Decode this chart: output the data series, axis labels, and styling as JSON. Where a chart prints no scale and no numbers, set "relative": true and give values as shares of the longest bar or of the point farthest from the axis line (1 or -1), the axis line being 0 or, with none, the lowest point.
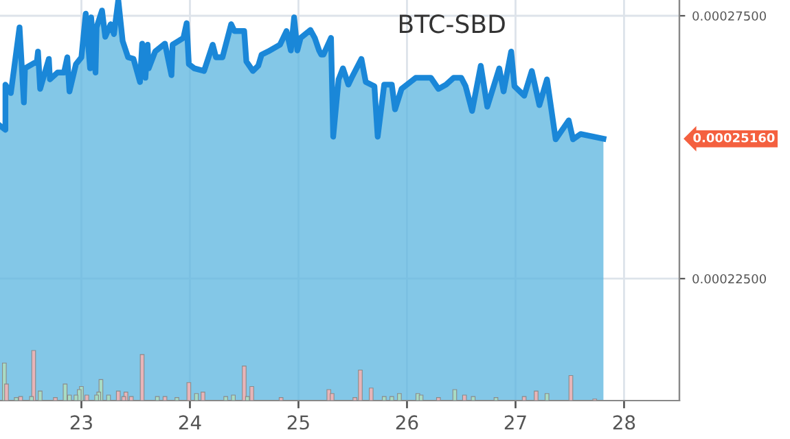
{
  "chart_data": [
    {
      "type": "area",
      "title": "BTC-SBD",
      "x": [
        22.25,
        22.3,
        22.3,
        22.35,
        22.38,
        22.43,
        22.47,
        22.48,
        22.59,
        22.6,
        22.62,
        22.7,
        22.71,
        22.78,
        22.84,
        22.87,
        22.89,
        22.95,
        23.0,
        23.04,
        23.08,
        23.09,
        23.13,
        23.14,
        23.19,
        23.22,
        23.27,
        23.3,
        23.34,
        23.38,
        23.43,
        23.48,
        23.54,
        23.56,
        23.59,
        23.61,
        23.62,
        23.68,
        23.77,
        23.83,
        23.84,
        23.94,
        23.97,
        23.99,
        24.04,
        24.13,
        24.21,
        24.24,
        24.3,
        24.38,
        24.41,
        24.5,
        24.52,
        24.58,
        24.63,
        24.66,
        24.72,
        24.83,
        24.89,
        24.93,
        24.96,
        24.99,
        25.02,
        25.11,
        25.15,
        25.19,
        25.21,
        25.23,
        25.3,
        25.32,
        25.37,
        25.41,
        25.46,
        25.49,
        25.58,
        25.62,
        25.7,
        25.73,
        25.79,
        25.86,
        25.89,
        25.95,
        26.08,
        26.22,
        26.29,
        26.36,
        26.43,
        26.5,
        26.54,
        26.6,
        26.68,
        26.74,
        26.85,
        26.89,
        26.96,
        26.99,
        27.08,
        27.15,
        27.22,
        27.29,
        27.37,
        27.49,
        27.53,
        27.6,
        27.81
      ],
      "series": [
        {
          "color": "#1a87d8",
          "values": [
            0.0002541,
            0.0002533,
            0.0002619,
            0.0002603,
            0.000265,
            0.0002728,
            0.0002585,
            0.000265,
            0.0002663,
            0.0002682,
            0.0002611,
            0.0002668,
            0.0002629,
            0.0002642,
            0.0002642,
            0.0002671,
            0.0002606,
            0.0002658,
            0.0002671,
            0.0002754,
            0.000265,
            0.0002747,
            0.0002642,
            0.0002728,
            0.000276,
            0.000271,
            0.0002734,
            0.0002715,
            0.000278,
            0.0002702,
            0.0002671,
            0.0002668,
            0.0002624,
            0.0002697,
            0.0002632,
            0.0002695,
            0.000265,
            0.0002682,
            0.0002697,
            0.0002637,
            0.0002695,
            0.0002708,
            0.0002736,
            0.0002658,
            0.000265,
            0.0002645,
            0.0002695,
            0.0002671,
            0.0002671,
            0.0002734,
            0.0002721,
            0.0002721,
            0.0002663,
            0.0002645,
            0.0002655,
            0.0002676,
            0.0002682,
            0.0002695,
            0.0002721,
            0.0002684,
            0.0002747,
            0.0002684,
            0.0002708,
            0.0002723,
            0.0002708,
            0.0002684,
            0.0002676,
            0.0002676,
            0.0002708,
            0.000252,
            0.0002629,
            0.000265,
            0.0002619,
            0.0002632,
            0.0002668,
            0.0002624,
            0.0002616,
            0.000252,
            0.0002619,
            0.0002619,
            0.0002572,
            0.0002611,
            0.0002632,
            0.0002632,
            0.0002611,
            0.0002619,
            0.0002632,
            0.0002632,
            0.0002616,
            0.0002569,
            0.0002655,
            0.0002577,
            0.000265,
            0.0002606,
            0.0002682,
            0.0002616,
            0.0002598,
            0.0002645,
            0.000258,
            0.0002629,
            0.0002515,
            0.0002551,
            0.0002515,
            0.0002525,
            0.0002516
          ]
        }
      ],
      "xlim": [
        22.25,
        28.51
      ],
      "xticks": [
        23,
        24,
        25,
        26,
        27,
        28
      ],
      "ylim": [
        0.0002018,
        0.000278
      ],
      "yticks": [
        {
          "value": 0.000225,
          "label": "0.00022500"
        },
        {
          "value": 0.000275,
          "label": "0.00027500"
        }
      ],
      "grid": true,
      "tick_labels": "y",
      "annotations": [
        "0.00025160"
      ]
    },
    {
      "type": "bar",
      "relative": true,
      "xlim": [
        22.25,
        28.51
      ],
      "xticks": [
        23,
        24,
        25,
        26,
        27,
        28
      ],
      "tick_labels": "x",
      "x": [
        22.29,
        22.31,
        22.4,
        22.44,
        22.54,
        22.56,
        22.62,
        22.76,
        22.85,
        22.89,
        22.95,
        22.98,
        23.0,
        23.05,
        23.14,
        23.16,
        23.18,
        23.25,
        23.34,
        23.39,
        23.41,
        23.46,
        23.56,
        23.7,
        23.77,
        23.88,
        23.99,
        24.06,
        24.12,
        24.33,
        24.4,
        24.5,
        24.53,
        24.57,
        24.84,
        25.28,
        25.31,
        25.52,
        25.57,
        25.67,
        25.79,
        25.86,
        25.93,
        26.1,
        26.13,
        26.29,
        26.44,
        26.53,
        26.61,
        26.82,
        27.08,
        27.19,
        27.29,
        27.51,
        27.73
      ],
      "values": [
        0.75,
        0.33,
        0.06,
        0.08,
        0.08,
        1,
        0.19,
        0.06,
        0.33,
        0.11,
        0.11,
        0.22,
        0.28,
        0.11,
        0.11,
        0.17,
        0.42,
        0.11,
        0.19,
        0.08,
        0.17,
        0.08,
        0.92,
        0.08,
        0.08,
        0.06,
        0.36,
        0.14,
        0.17,
        0.08,
        0.11,
        0.69,
        0.08,
        0.28,
        0.06,
        0.22,
        0.14,
        0.06,
        0.61,
        0.25,
        0.08,
        0.08,
        0.14,
        0.14,
        0.11,
        0.06,
        0.22,
        0.11,
        0.08,
        0.06,
        0.08,
        0.19,
        0.14,
        0.5,
        0.03
      ],
      "colors": [
        "#a8dcc4",
        "#e8b4b8",
        "#a8dcc4",
        "#e8b4b8",
        "#a8dcc4",
        "#e8b4b8",
        "#a8dcc4",
        "#e8b4b8",
        "#a8dcc4",
        "#a8dcc4",
        "#a8dcc4",
        "#a8dcc4",
        "#a8dcc4",
        "#e8b4b8",
        "#a8dcc4",
        "#a8dcc4",
        "#a8dcc4",
        "#a8dcc4",
        "#e8b4b8",
        "#e8b4b8",
        "#e8b4b8",
        "#e8b4b8",
        "#e8b4b8",
        "#a8dcc4",
        "#e8b4b8",
        "#a8dcc4",
        "#e8b4b8",
        "#a8dcc4",
        "#e8b4b8",
        "#a8dcc4",
        "#a8dcc4",
        "#e8b4b8",
        "#a8dcc4",
        "#e8b4b8",
        "#e8b4b8",
        "#e8b4b8",
        "#e8b4b8",
        "#e8b4b8",
        "#e8b4b8",
        "#e8b4b8",
        "#a8dcc4",
        "#a8dcc4",
        "#a8dcc4",
        "#a8dcc4",
        "#a8dcc4",
        "#e8b4b8",
        "#a8dcc4",
        "#e8b4b8",
        "#a8dcc4",
        "#a8dcc4",
        "#e8b4b8",
        "#e8b4b8",
        "#a8dcc4",
        "#e8b4b8",
        "#e8b4b8"
      ]
    }
  ]
}
